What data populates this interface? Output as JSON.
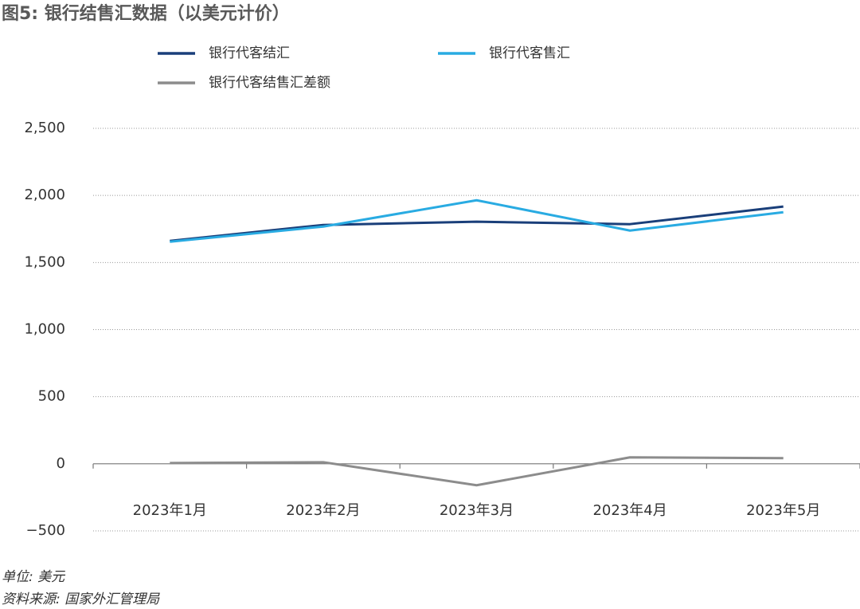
{
  "chart_data": {
    "type": "line",
    "title": "图5: 银行结售汇数据（以美元计价）",
    "notes": [
      "单位: 美元",
      "资料来源: 国家外汇管理局"
    ],
    "categories": [
      "2023年1月",
      "2023年2月",
      "2023年3月",
      "2023年4月",
      "2023年5月"
    ],
    "series": [
      {
        "name": "银行代客结汇",
        "color": "#1a3f7a",
        "values": [
          1661,
          1780,
          1804,
          1786,
          1917
        ]
      },
      {
        "name": "银行代客售汇",
        "color": "#29abe2",
        "values": [
          1655,
          1768,
          1964,
          1738,
          1875
        ]
      },
      {
        "name": "银行代客结售汇差额",
        "color": "#8c8c8c",
        "values": [
          6,
          12,
          -160,
          48,
          42
        ]
      }
    ],
    "ylim": [
      -500,
      2500
    ],
    "yticks": [
      {
        "value": -500,
        "label": "−500"
      },
      0,
      500,
      {
        "value": 1000,
        "label": "1,000"
      },
      {
        "value": 1500,
        "label": "1,500"
      },
      {
        "value": 2000,
        "label": "2,000"
      },
      {
        "value": 2500,
        "label": "2,500"
      }
    ],
    "grid": true
  }
}
